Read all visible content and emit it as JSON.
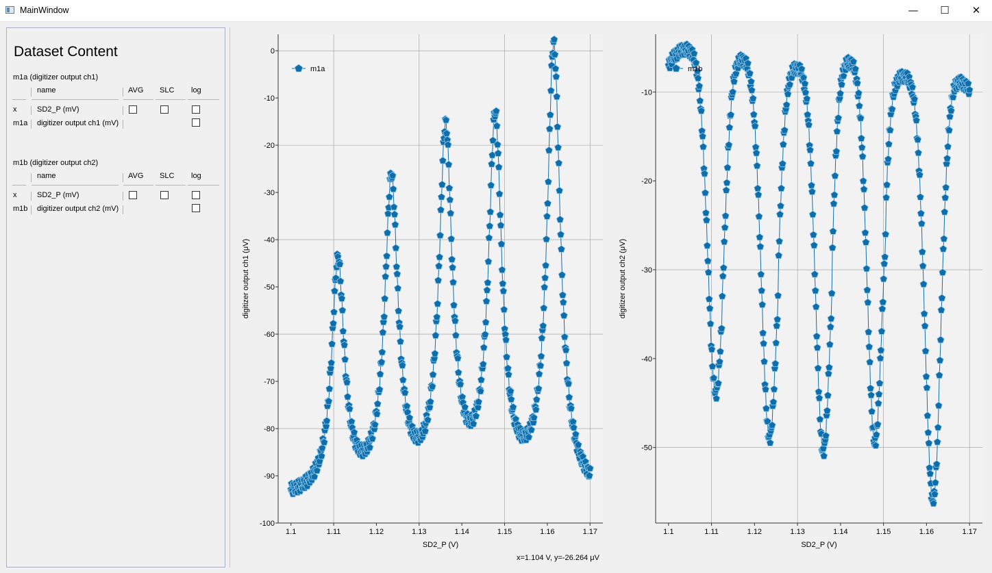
{
  "window": {
    "title": "MainWindow",
    "minimize": "—",
    "maximize": "☐",
    "close": "✕"
  },
  "panel": {
    "title": "Dataset Content",
    "datasets": [
      {
        "label": "m1a (digitizer output ch1)",
        "headers": {
          "name": "name",
          "avg": "AVG",
          "slc": "SLC",
          "log": "log"
        },
        "rows": [
          {
            "role": "x",
            "name": "SD2_P (mV)",
            "avg": false,
            "slc": false,
            "log": false
          },
          {
            "role": "m1a",
            "name": "digitizer output ch1 (mV)",
            "log": false
          }
        ]
      },
      {
        "label": "m1b (digitizer output ch2)",
        "headers": {
          "name": "name",
          "avg": "AVG",
          "slc": "SLC",
          "log": "log"
        },
        "rows": [
          {
            "role": "x",
            "name": "SD2_P (mV)",
            "avg": false,
            "slc": false,
            "log": false
          },
          {
            "role": "m1b",
            "name": "digitizer output ch2 (mV)",
            "log": false
          }
        ]
      }
    ]
  },
  "status": "x=1.104 V, y=-26.264 μV",
  "colors": {
    "marker": "#0f6eaa",
    "marker_edge": "#8ec7ea",
    "grid": "#9a9a9a",
    "plot_bg": "#f2f2f2"
  },
  "chart_data": [
    {
      "type": "scatter",
      "title": "",
      "xlabel": "SD2_P (V)",
      "ylabel": "digitizer output ch1 (μV)",
      "xlim": [
        1.097,
        1.173
      ],
      "ylim": [
        -100,
        3.5
      ],
      "x_ticks": [
        1.1,
        1.11,
        1.12,
        1.13,
        1.14,
        1.15,
        1.16,
        1.17
      ],
      "y_ticks": [
        0,
        -10,
        -20,
        -30,
        -40,
        -50,
        -60,
        -70,
        -80,
        -90,
        -100
      ],
      "grid": "every other y tick, x at 1.11/1.13/1.15/1.17",
      "legend": {
        "position": "top-left",
        "label": "m1a"
      },
      "marker": "pentagon",
      "baseline": -95,
      "series": [
        {
          "name": "m1a",
          "peaks": [
            {
              "x": 1.111,
              "y": -46,
              "width": 0.0018
            },
            {
              "x": 1.1235,
              "y": -29.5,
              "width": 0.0019
            },
            {
              "x": 1.1362,
              "y": -19.5,
              "width": 0.0019
            },
            {
              "x": 1.1478,
              "y": -17,
              "width": 0.0019
            },
            {
              "x": 1.1615,
              "y": -0.5,
              "width": 0.0019
            }
          ],
          "x_range": [
            1.1,
            1.17
          ]
        }
      ]
    },
    {
      "type": "scatter",
      "title": "",
      "xlabel": "SD2_P (V)",
      "ylabel": "digitizer output ch2 (μV)",
      "xlim": [
        1.097,
        1.173
      ],
      "ylim": [
        -58.5,
        -3.5
      ],
      "x_ticks": [
        1.1,
        1.11,
        1.12,
        1.13,
        1.14,
        1.15,
        1.16,
        1.17
      ],
      "y_ticks": [
        -10,
        -20,
        -30,
        -40,
        -50
      ],
      "grid": "every other y tick, x at 1.11/1.13/1.15/1.17",
      "legend": {
        "position": "top-left",
        "label": "m1b"
      },
      "marker": "pentagon",
      "baseline": -6,
      "series": [
        {
          "name": "m1b",
          "dips": [
            {
              "x": 1.111,
              "y": -44,
              "width": 0.0025
            },
            {
              "x": 1.1235,
              "y": -49,
              "width": 0.0025
            },
            {
              "x": 1.136,
              "y": -50.5,
              "width": 0.0024
            },
            {
              "x": 1.148,
              "y": -49.5,
              "width": 0.0024
            },
            {
              "x": 1.1615,
              "y": -56,
              "width": 0.0025
            }
          ],
          "humps": [
            {
              "x": 1.104,
              "y": -5.2
            },
            {
              "x": 1.1165,
              "y": -6.2
            },
            {
              "x": 1.1295,
              "y": -7.2
            },
            {
              "x": 1.142,
              "y": -6.5
            },
            {
              "x": 1.1545,
              "y": -8.2
            },
            {
              "x": 1.1668,
              "y": -8.7
            }
          ],
          "x_range": [
            1.1,
            1.17
          ]
        }
      ]
    }
  ]
}
